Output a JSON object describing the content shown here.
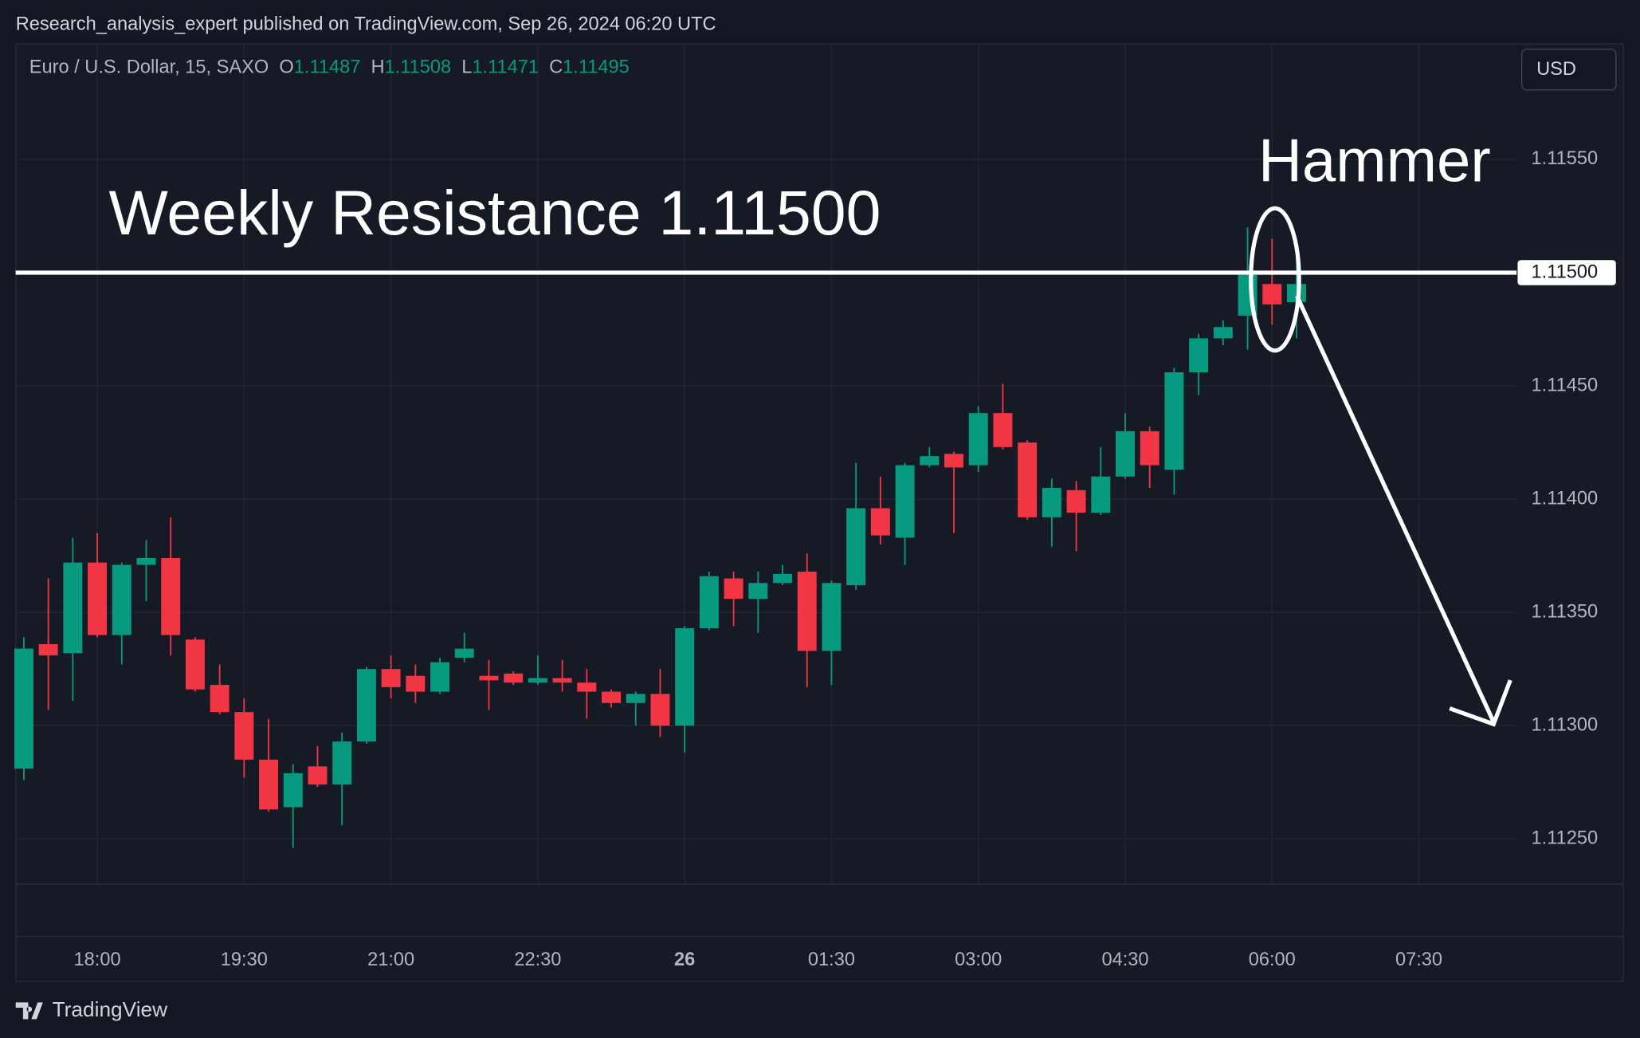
{
  "chart_data": {
    "type": "candlestick",
    "caption": "Research_analysis_expert published on TradingView.com, Sep 26, 2024 06:20 UTC",
    "title": "Euro / U.S. Dollar, 15, SAXO",
    "ohlc_labels": [
      "O",
      "H",
      "L",
      "C"
    ],
    "currency_button": "USD",
    "brand": "TradingView",
    "annotations": {
      "resistance_text": "Weekly Resistance 1.11500",
      "pattern_text": "Hammer"
    },
    "resistance": {
      "value": 1.115,
      "label": "1.11500"
    },
    "up_color": "#089981",
    "down_color": "#f23645",
    "grid": true,
    "ylim": [
      1.1123,
      1.11601
    ],
    "yticks": [
      {
        "value": 1.1125,
        "label": "1.11250"
      },
      {
        "value": 1.113,
        "label": "1.11300"
      },
      {
        "value": 1.1135,
        "label": "1.11350"
      },
      {
        "value": 1.114,
        "label": "1.11400"
      },
      {
        "value": 1.1145,
        "label": "1.11450"
      },
      {
        "value": 1.1155,
        "label": "1.11550"
      }
    ],
    "xticks": [
      "18:00",
      "19:30",
      "21:00",
      "22:30",
      {
        "value": "00:00",
        "label": "26"
      },
      "01:30",
      "03:00",
      "04:30",
      "06:00",
      "07:30"
    ],
    "x": [
      "17:15",
      "17:30",
      "17:45",
      "18:00",
      "18:15",
      "18:30",
      "18:45",
      "19:00",
      "19:15",
      "19:30",
      "19:45",
      "20:00",
      "20:15",
      "20:30",
      "20:45",
      "21:00",
      "21:15",
      "21:30",
      "21:45",
      "22:00",
      "22:15",
      "22:30",
      "22:45",
      "23:00",
      "23:15",
      "23:30",
      "23:45",
      "00:00",
      "00:15",
      "00:30",
      "00:45",
      "01:00",
      "01:15",
      "01:30",
      "01:45",
      "02:00",
      "02:15",
      "02:30",
      "02:45",
      "03:00",
      "03:15",
      "03:30",
      "03:45",
      "04:00",
      "04:15",
      "04:30",
      "04:45",
      "05:00",
      "05:15",
      "05:30",
      "05:45",
      "06:00",
      "06:15"
    ],
    "open": [
      1.11281,
      1.11336,
      1.11332,
      1.11372,
      1.1134,
      1.11371,
      1.11374,
      1.11338,
      1.11318,
      1.11306,
      1.11285,
      1.11264,
      1.11282,
      1.11274,
      1.11293,
      1.11325,
      1.11322,
      1.11315,
      1.1133,
      1.11322,
      1.11323,
      1.11319,
      1.11321,
      1.11319,
      1.11315,
      1.1131,
      1.11314,
      1.113,
      1.11343,
      1.11365,
      1.11356,
      1.11363,
      1.11368,
      1.11333,
      1.11362,
      1.11396,
      1.11383,
      1.11415,
      1.1142,
      1.11415,
      1.11438,
      1.11425,
      1.11392,
      1.11404,
      1.11394,
      1.1141,
      1.1143,
      1.11413,
      1.11456,
      1.11471,
      1.11481,
      1.11495,
      1.11487
    ],
    "high": [
      1.11339,
      1.11365,
      1.11383,
      1.11385,
      1.11372,
      1.11382,
      1.11392,
      1.11339,
      1.11327,
      1.11312,
      1.11303,
      1.11283,
      1.11291,
      1.11297,
      1.11326,
      1.11331,
      1.11327,
      1.1133,
      1.11341,
      1.11329,
      1.11324,
      1.11331,
      1.11329,
      1.11325,
      1.11316,
      1.11315,
      1.11325,
      1.11344,
      1.11368,
      1.11368,
      1.11368,
      1.11371,
      1.11376,
      1.11364,
      1.11416,
      1.1141,
      1.11416,
      1.11423,
      1.11421,
      1.11441,
      1.11451,
      1.11426,
      1.11409,
      1.11408,
      1.11423,
      1.11438,
      1.11432,
      1.11458,
      1.11473,
      1.11479,
      1.1152,
      1.11515,
      1.11508
    ],
    "low": [
      1.11276,
      1.11307,
      1.11311,
      1.11339,
      1.11327,
      1.11355,
      1.11331,
      1.11315,
      1.11305,
      1.11277,
      1.11262,
      1.11246,
      1.11273,
      1.11256,
      1.11292,
      1.11312,
      1.1131,
      1.11314,
      1.11328,
      1.11307,
      1.11318,
      1.11318,
      1.11315,
      1.11303,
      1.11308,
      1.113,
      1.11295,
      1.11288,
      1.11342,
      1.11344,
      1.11341,
      1.11362,
      1.11317,
      1.11318,
      1.1136,
      1.1138,
      1.11371,
      1.11414,
      1.11385,
      1.11412,
      1.11422,
      1.11391,
      1.11379,
      1.11377,
      1.11393,
      1.11409,
      1.11405,
      1.11402,
      1.11446,
      1.11468,
      1.11466,
      1.11477,
      1.11471
    ],
    "close": [
      1.11334,
      1.11331,
      1.11372,
      1.1134,
      1.11371,
      1.11374,
      1.1134,
      1.11316,
      1.11306,
      1.11285,
      1.11263,
      1.11279,
      1.11274,
      1.11293,
      1.11325,
      1.11317,
      1.11315,
      1.11328,
      1.11334,
      1.1132,
      1.11319,
      1.11321,
      1.11319,
      1.11315,
      1.1131,
      1.11314,
      1.113,
      1.11343,
      1.11366,
      1.11356,
      1.11363,
      1.11367,
      1.11333,
      1.11363,
      1.11396,
      1.11384,
      1.11415,
      1.11419,
      1.11414,
      1.11438,
      1.11423,
      1.11392,
      1.11405,
      1.11394,
      1.1141,
      1.1143,
      1.11415,
      1.11456,
      1.11471,
      1.11476,
      1.11499,
      1.11486,
      1.11495
    ]
  }
}
